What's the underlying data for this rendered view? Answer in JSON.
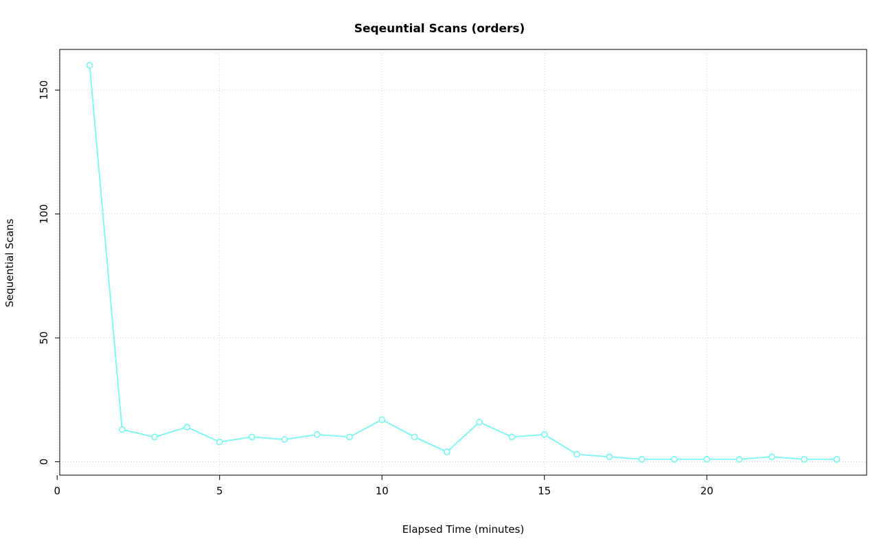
{
  "figure": {
    "background": "#ffffff"
  },
  "chart_data": {
    "type": "line",
    "title": "Seqeuntial Scans (orders)",
    "xlabel": "Elapsed Time (minutes)",
    "ylabel": "Sequential Scans",
    "x": [
      1,
      2,
      3,
      4,
      5,
      6,
      7,
      8,
      9,
      10,
      11,
      12,
      13,
      14,
      15,
      16,
      17,
      18,
      19,
      20,
      21,
      22,
      23,
      24
    ],
    "values": [
      160,
      13,
      10,
      14,
      8,
      10,
      9,
      11,
      10,
      17,
      10,
      4,
      16,
      10,
      11,
      3,
      2,
      1,
      1,
      1,
      1,
      2,
      1,
      1
    ],
    "xticks": [
      0,
      5,
      10,
      15,
      20
    ],
    "yticks": [
      0,
      50,
      100,
      150
    ],
    "xlim": [
      0.08,
      24.92
    ],
    "ylim": [
      -5.4,
      166.4
    ],
    "grid": true,
    "grid_style": "dotted",
    "grid_color": "#d3d3d3",
    "series_color": "#82f6f0",
    "axis_color": "#000000",
    "marker": "open-circle",
    "legend_position": "none"
  }
}
